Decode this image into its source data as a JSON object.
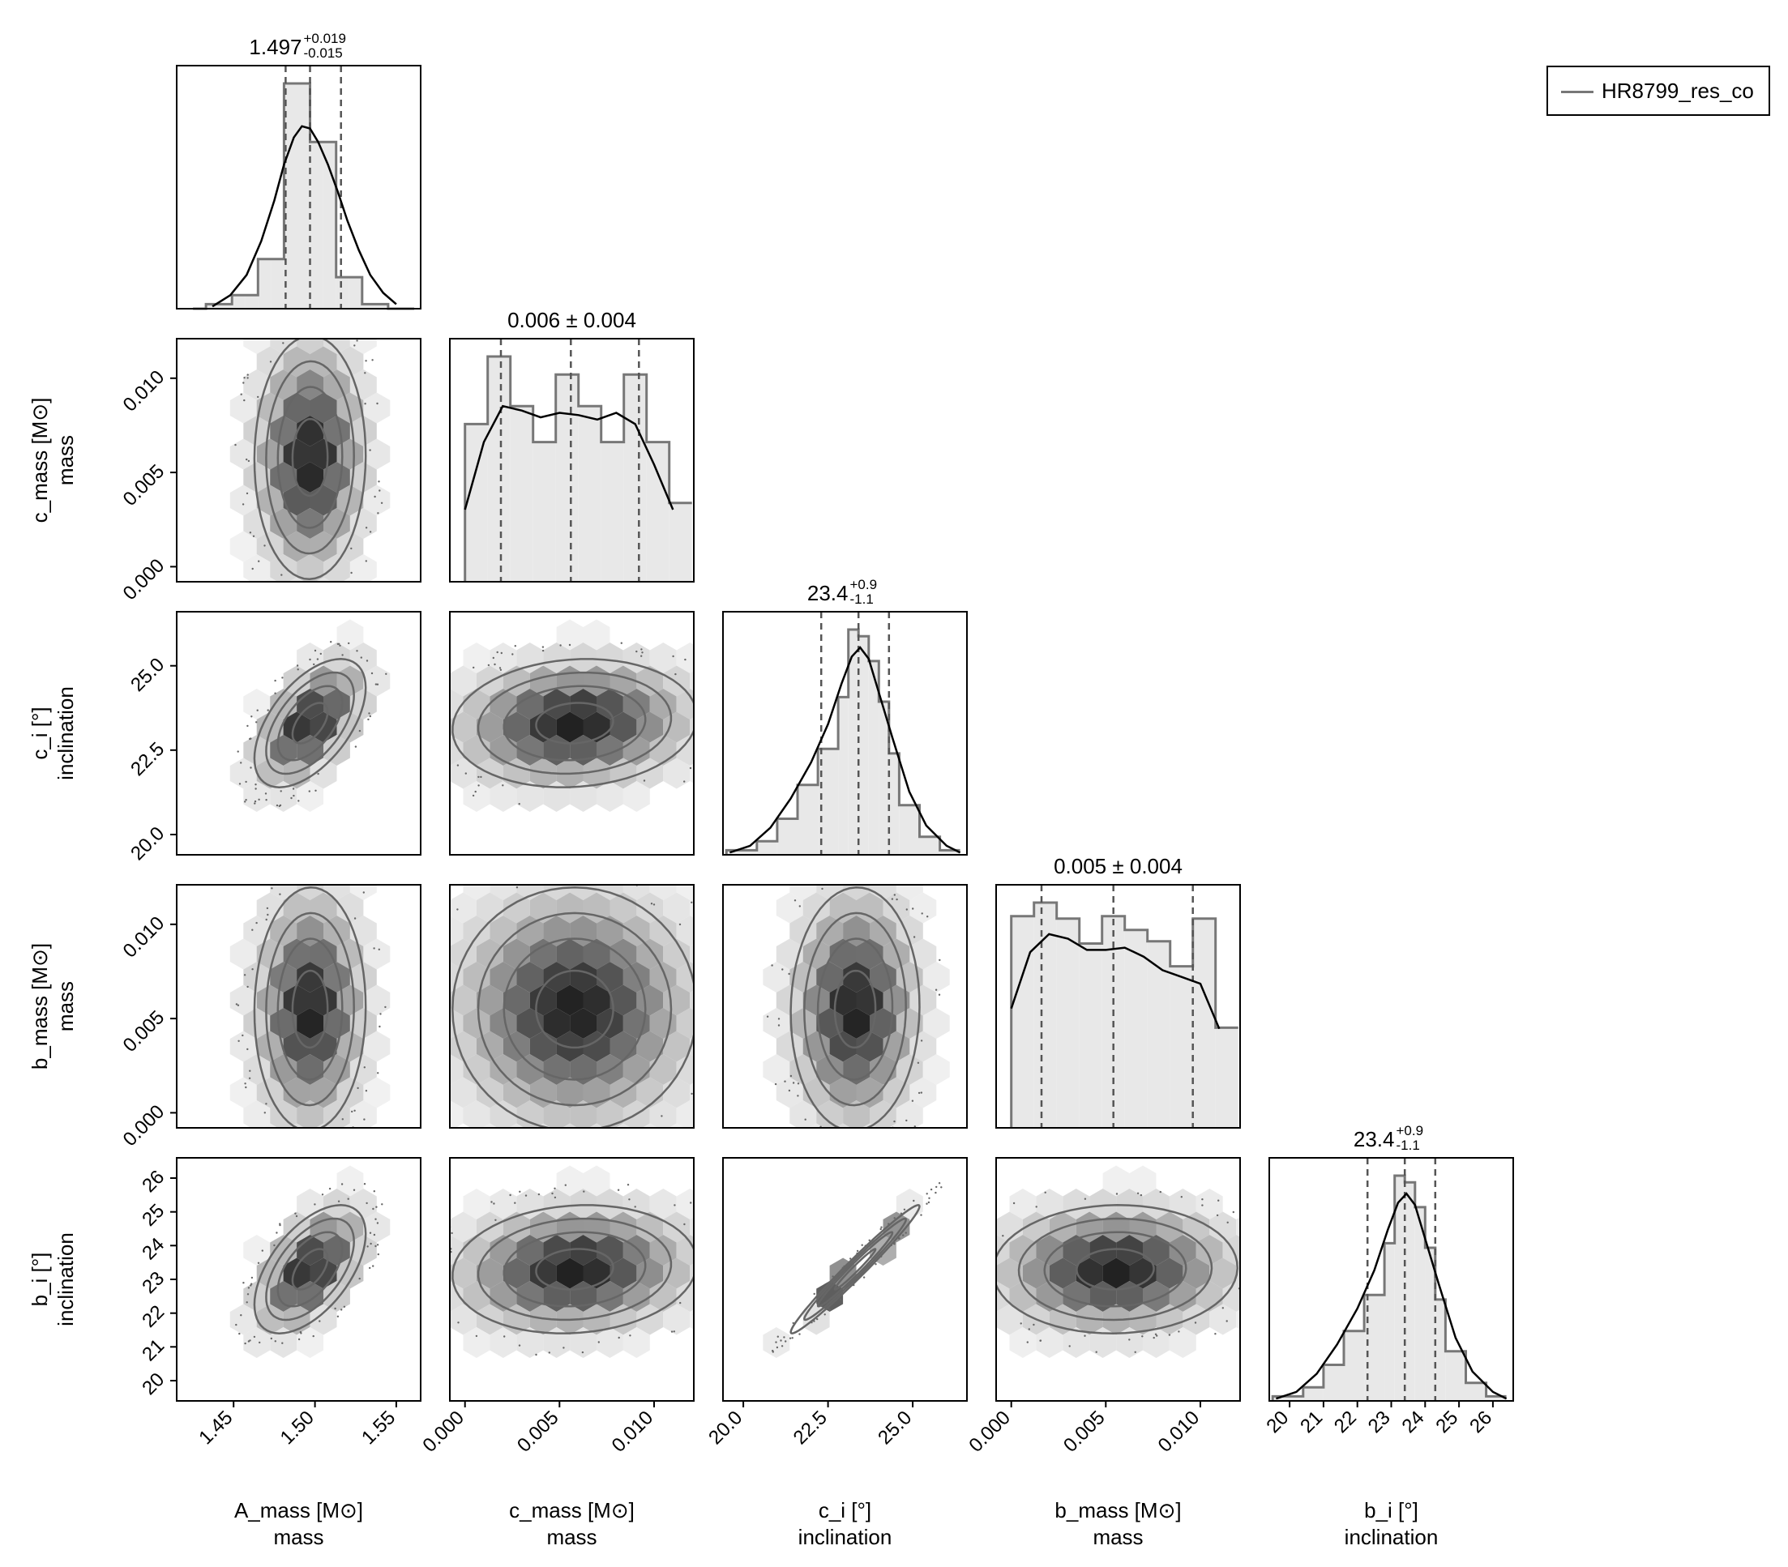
{
  "legend": {
    "label": "HR8799_res_co",
    "color": "#777777"
  },
  "colors": {
    "hist_fill": "#e8e8e8",
    "hist_step": "#777777",
    "kde": "#000000",
    "quantile": "#555555",
    "contour": "#666666",
    "hex_dark": "#222222"
  },
  "chart_data": {
    "type": "corner",
    "series_name": "HR8799_res_co",
    "parameters": [
      {
        "name": "A_mass",
        "label_line1": "A_mass [M⊙]",
        "label_line2": "mass",
        "range": [
          1.415,
          1.565
        ],
        "ticks": [
          1.45,
          1.5,
          1.55
        ],
        "tick_labels": [
          "1.45",
          "1.50",
          "1.55"
        ],
        "title": {
          "median": "1.497",
          "plus": "+0.019",
          "minus": "-0.015"
        },
        "quantiles": [
          1.482,
          1.497,
          1.516
        ],
        "hist": {
          "edges": [
            1.425,
            1.433,
            1.441,
            1.449,
            1.457,
            1.465,
            1.473,
            1.481,
            1.489,
            1.497,
            1.505,
            1.513,
            1.521,
            1.529,
            1.537,
            1.545,
            1.553,
            1.561
          ],
          "counts": [
            0,
            2,
            2,
            6,
            6,
            22,
            22,
            100,
            100,
            74,
            74,
            14,
            14,
            2,
            2,
            0,
            0
          ]
        },
        "kde": {
          "x": [
            1.437,
            1.448,
            1.458,
            1.467,
            1.475,
            1.481,
            1.487,
            1.492,
            1.497,
            1.502,
            1.508,
            1.514,
            1.52,
            1.527,
            1.534,
            1.542,
            1.55
          ],
          "y": [
            1,
            6,
            15,
            30,
            48,
            64,
            76,
            81,
            80,
            74,
            64,
            52,
            39,
            26,
            15,
            7,
            2
          ]
        }
      },
      {
        "name": "c_mass",
        "label_line1": "c_mass [M⊙]",
        "label_line2": "mass",
        "range": [
          -0.0008,
          0.0121
        ],
        "ticks": [
          0.0,
          0.005,
          0.01
        ],
        "tick_labels": [
          "0.000",
          "0.005",
          "0.010"
        ],
        "title": {
          "text": "0.006 ± 0.004"
        },
        "quantiles": [
          0.0019,
          0.0056,
          0.0092
        ],
        "hist": {
          "edges": [
            0.0,
            0.0012,
            0.0024,
            0.0036,
            0.0048,
            0.006,
            0.0072,
            0.0084,
            0.0096,
            0.0108,
            0.012
          ],
          "counts": [
            70,
            100,
            78,
            62,
            92,
            78,
            62,
            92,
            62,
            35
          ]
        },
        "kde": {
          "x": [
            0.0,
            0.001,
            0.002,
            0.003,
            0.004,
            0.005,
            0.006,
            0.007,
            0.008,
            0.009,
            0.01,
            0.011
          ],
          "y": [
            32,
            62,
            78,
            76,
            73,
            75,
            74,
            72,
            75,
            70,
            52,
            32
          ]
        }
      },
      {
        "name": "c_i",
        "label_line1": "c_i [°]",
        "label_line2": "inclination",
        "range": [
          19.4,
          26.6
        ],
        "ticks": [
          20.0,
          22.5,
          25.0
        ],
        "tick_labels": [
          "20.0",
          "22.5",
          "25.0"
        ],
        "title": {
          "median": "23.4",
          "plus": "+0.9",
          "minus": "-1.1"
        },
        "quantiles": [
          22.3,
          23.4,
          24.3
        ],
        "hist": {
          "edges": [
            19.5,
            20.4,
            21.0,
            21.6,
            22.2,
            22.8,
            23.1,
            23.4,
            23.7,
            24.0,
            24.3,
            24.6,
            25.2,
            25.8,
            26.4
          ],
          "counts": [
            2,
            6,
            16,
            31,
            47,
            70,
            100,
            97,
            86,
            68,
            45,
            22,
            8,
            2
          ]
        },
        "kde": {
          "x": [
            19.6,
            20.2,
            20.8,
            21.4,
            22.0,
            22.5,
            22.9,
            23.2,
            23.45,
            23.7,
            24.0,
            24.4,
            24.9,
            25.4,
            26.0,
            26.4
          ],
          "y": [
            1,
            4,
            12,
            25,
            41,
            58,
            76,
            88,
            92,
            87,
            72,
            52,
            28,
            13,
            4,
            1
          ]
        }
      },
      {
        "name": "b_mass",
        "label_line1": "b_mass [M⊙]",
        "label_line2": "mass",
        "range": [
          -0.0008,
          0.0121
        ],
        "ticks": [
          0.0,
          0.005,
          0.01
        ],
        "tick_labels": [
          "0.000",
          "0.005",
          "0.010"
        ],
        "title": {
          "text": "0.005 ± 0.004"
        },
        "quantiles": [
          0.0016,
          0.0054,
          0.0096
        ],
        "hist": {
          "edges": [
            0.0,
            0.0012,
            0.0024,
            0.0036,
            0.0048,
            0.006,
            0.0072,
            0.0084,
            0.0096,
            0.0108,
            0.012
          ],
          "counts": [
            93,
            99,
            92,
            81,
            93,
            87,
            82,
            71,
            92,
            44
          ]
        },
        "kde": {
          "x": [
            0.0,
            0.001,
            0.002,
            0.003,
            0.004,
            0.005,
            0.006,
            0.007,
            0.008,
            0.009,
            0.01,
            0.011
          ],
          "y": [
            53,
            78,
            86,
            84,
            79,
            79,
            80,
            76,
            70,
            67,
            64,
            44
          ]
        }
      },
      {
        "name": "b_i",
        "label_line1": "b_i [°]",
        "label_line2": "inclination",
        "range": [
          19.4,
          26.6
        ],
        "ticks": [
          20,
          21,
          22,
          23,
          24,
          25,
          26
        ],
        "tick_labels": [
          "20",
          "21",
          "22",
          "23",
          "24",
          "25",
          "26"
        ],
        "title": {
          "median": "23.4",
          "plus": "+0.9",
          "minus": "-1.1"
        },
        "quantiles": [
          22.3,
          23.4,
          24.3
        ],
        "hist": {
          "edges": [
            19.5,
            20.4,
            21.0,
            21.6,
            22.2,
            22.8,
            23.1,
            23.4,
            23.7,
            24.0,
            24.3,
            24.6,
            25.2,
            25.8,
            26.4
          ],
          "counts": [
            2,
            6,
            16,
            31,
            47,
            70,
            100,
            97,
            86,
            68,
            45,
            22,
            8,
            2
          ]
        },
        "kde": {
          "x": [
            19.6,
            20.2,
            20.8,
            21.4,
            22.0,
            22.5,
            22.9,
            23.2,
            23.45,
            23.7,
            24.0,
            24.4,
            24.9,
            25.4,
            26.0,
            26.4
          ],
          "y": [
            1,
            4,
            12,
            25,
            41,
            58,
            76,
            88,
            92,
            87,
            72,
            52,
            28,
            13,
            4,
            1
          ]
        }
      }
    ],
    "pairs": [
      {
        "row": 1,
        "col": 0,
        "mean": [
          1.497,
          0.0058
        ],
        "sd": [
          0.018,
          0.0034
        ],
        "rho": 0.02
      },
      {
        "row": 2,
        "col": 0,
        "mean": [
          1.497,
          23.3
        ],
        "sd": [
          0.018,
          1.0
        ],
        "rho": 0.55
      },
      {
        "row": 2,
        "col": 1,
        "mean": [
          0.0058,
          23.3
        ],
        "sd": [
          0.0034,
          1.0
        ],
        "rho": 0.1
      },
      {
        "row": 3,
        "col": 0,
        "mean": [
          1.497,
          0.0055
        ],
        "sd": [
          0.018,
          0.0034
        ],
        "rho": 0.02
      },
      {
        "row": 3,
        "col": 1,
        "mean": [
          0.0058,
          0.0055
        ],
        "sd": [
          0.0034,
          0.0034
        ],
        "rho": 0.0
      },
      {
        "row": 3,
        "col": 2,
        "mean": [
          23.3,
          0.0055
        ],
        "sd": [
          1.0,
          0.0034
        ],
        "rho": 0.03
      },
      {
        "row": 4,
        "col": 0,
        "mean": [
          1.497,
          23.3
        ],
        "sd": [
          0.018,
          1.0
        ],
        "rho": 0.55
      },
      {
        "row": 4,
        "col": 1,
        "mean": [
          0.0058,
          23.3
        ],
        "sd": [
          0.0034,
          1.0
        ],
        "rho": 0.1
      },
      {
        "row": 4,
        "col": 2,
        "mean": [
          23.3,
          23.3
        ],
        "sd": [
          1.0,
          1.0
        ],
        "rho": 0.98
      },
      {
        "row": 4,
        "col": 3,
        "mean": [
          0.0055,
          23.3
        ],
        "sd": [
          0.0034,
          1.0
        ],
        "rho": 0.03
      }
    ]
  }
}
